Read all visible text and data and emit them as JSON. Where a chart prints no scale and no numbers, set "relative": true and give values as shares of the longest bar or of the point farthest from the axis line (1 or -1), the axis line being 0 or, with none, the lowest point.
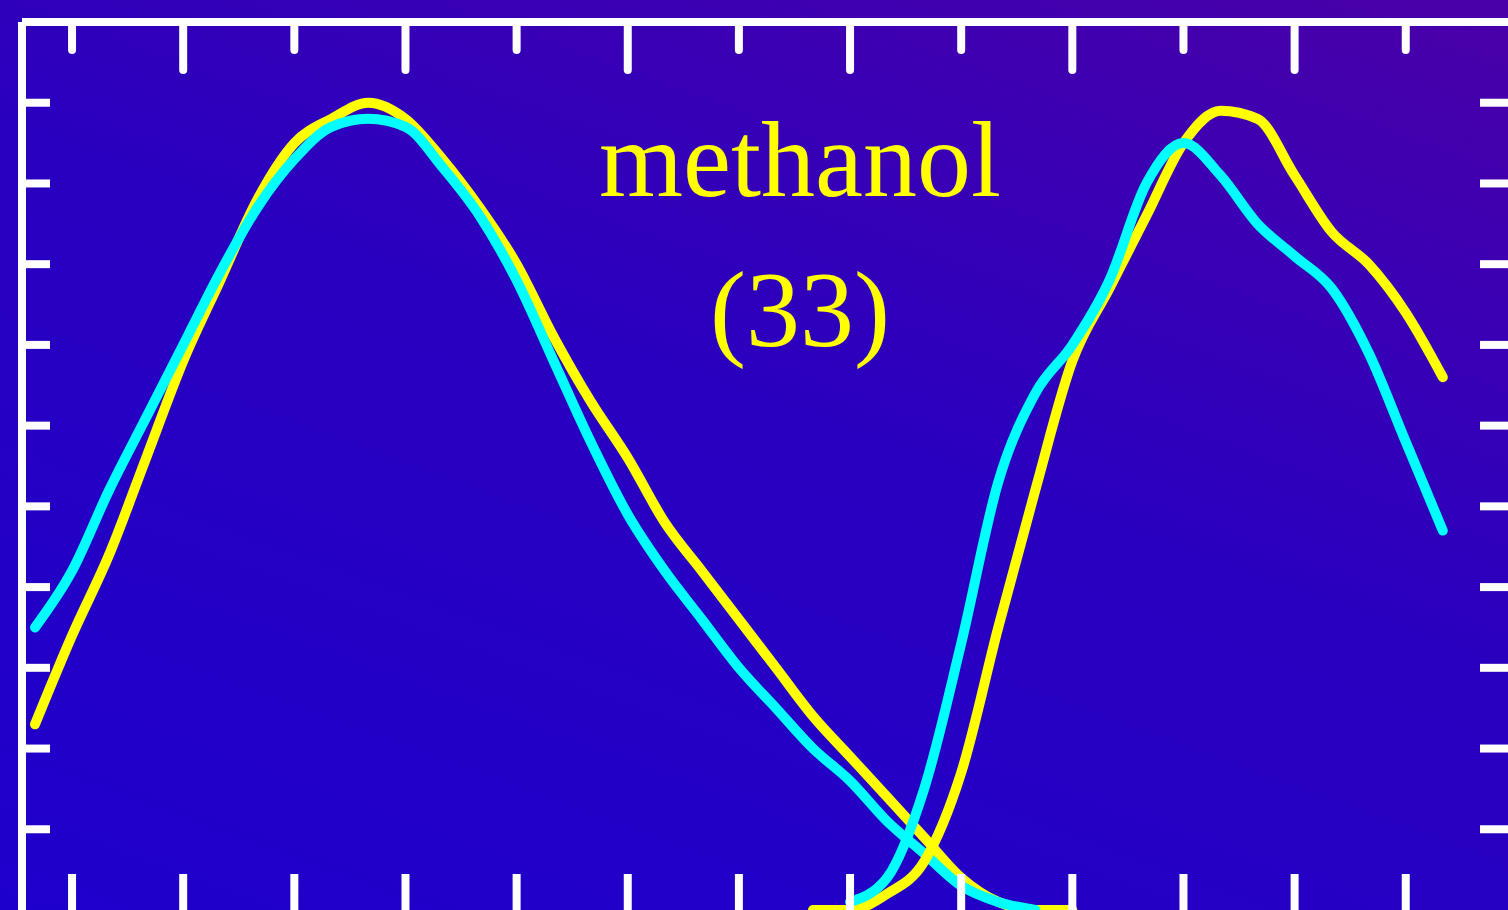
{
  "chart_data": {
    "type": "line",
    "relative": true,
    "categories": [
      null,
      null,
      null,
      null,
      null,
      null,
      null,
      null,
      null,
      null,
      null,
      null,
      null,
      null,
      null,
      null,
      null,
      null,
      null,
      null,
      null,
      null,
      null,
      null,
      null,
      null,
      null,
      null,
      null,
      null,
      null,
      null,
      null,
      null,
      null,
      null,
      null,
      null,
      null
    ],
    "series": [
      {
        "color": "#ffff00",
        "values": [
          0.23,
          0.34,
          0.44,
          0.56,
          0.68,
          0.78,
          0.88,
          0.95,
          0.98,
          1,
          0.98,
          0.93,
          0.87,
          0.8,
          0.71,
          0.63,
          0.56,
          0.48,
          0.42,
          0.36,
          0.3,
          0.24,
          0.19,
          0.14,
          0.09,
          0.04,
          0.01,
          0,
          0,
          null,
          null,
          null,
          null,
          null,
          null,
          null,
          null,
          null,
          null
        ]
      },
      {
        "color": "#00ffff",
        "values": [
          0.35,
          0.42,
          0.52,
          0.61,
          0.7,
          0.79,
          0.87,
          0.93,
          0.97,
          0.98,
          0.97,
          0.92,
          0.86,
          0.78,
          0.68,
          0.58,
          0.49,
          0.42,
          0.36,
          0.3,
          0.25,
          0.2,
          0.16,
          0.11,
          0.07,
          0.03,
          0.01,
          0,
          null,
          null,
          null,
          null,
          null,
          null,
          null,
          null,
          null,
          null,
          null
        ]
      },
      {
        "color": "#ffff00",
        "values": [
          null,
          null,
          null,
          null,
          null,
          null,
          null,
          null,
          null,
          null,
          null,
          null,
          null,
          null,
          null,
          null,
          null,
          null,
          null,
          null,
          null,
          0,
          0,
          0.02,
          0.06,
          0.17,
          0.35,
          0.52,
          0.68,
          0.77,
          0.86,
          0.95,
          0.99,
          0.98,
          0.91,
          0.84,
          0.8,
          0.74,
          0.66
        ]
      },
      {
        "color": "#00ffff",
        "values": [
          null,
          null,
          null,
          null,
          null,
          null,
          null,
          null,
          null,
          null,
          null,
          null,
          null,
          null,
          null,
          null,
          null,
          null,
          null,
          null,
          null,
          null,
          0.01,
          0.04,
          0.15,
          0.33,
          0.53,
          0.64,
          0.7,
          0.78,
          0.9,
          0.95,
          0.91,
          0.85,
          0.81,
          0.77,
          0.69,
          0.58,
          0.47
        ]
      }
    ],
    "annotations": [
      "methanol",
      "(33)"
    ]
  }
}
